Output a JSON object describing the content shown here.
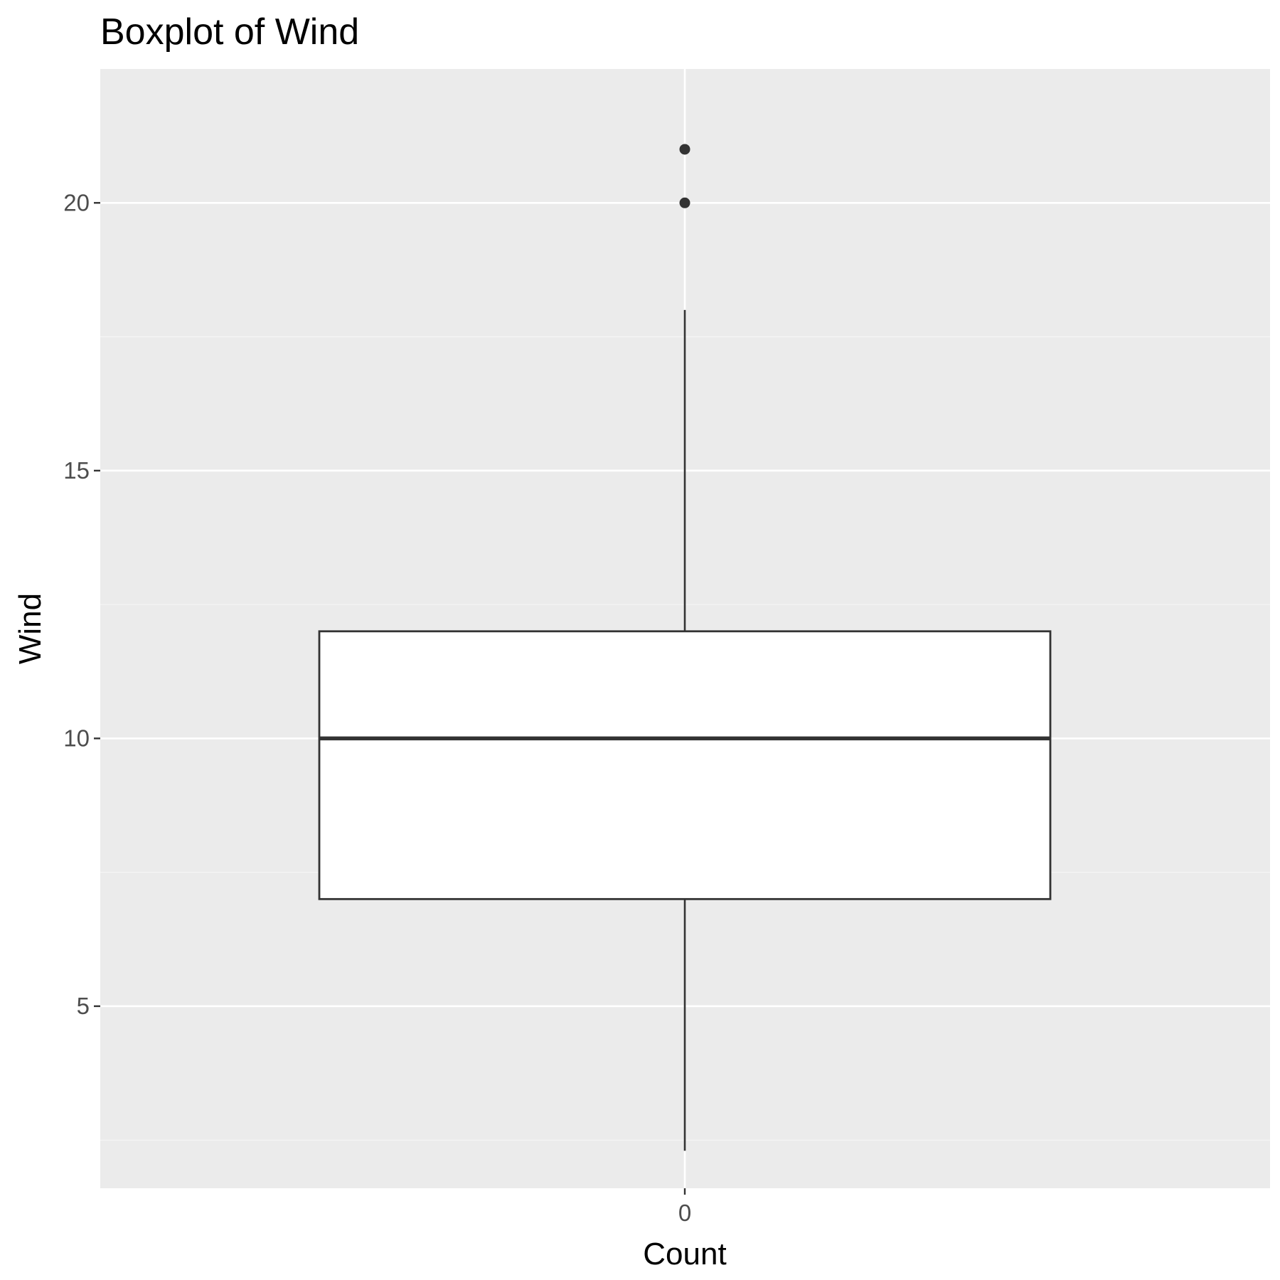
{
  "colors": {
    "panel_background": "#EBEBEB",
    "grid_major": "#FFFFFF",
    "grid_minor": "#F5F5F5",
    "box_fill": "#FFFFFF",
    "box_outline": "#333333",
    "outlier": "#333333",
    "tick_text": "#4D4D4D",
    "title_text": "#000000"
  },
  "chart_data": {
    "type": "boxplot",
    "title": "Boxplot of Wind",
    "xlabel": "Count",
    "ylabel": "Wind",
    "grid": true,
    "legend": "none",
    "categories": [
      "0"
    ],
    "x_tick_labels": [
      "0"
    ],
    "y_ticks": [
      5,
      10,
      15,
      20
    ],
    "y_tick_labels": [
      "5",
      "10",
      "15",
      "20"
    ],
    "ylim": [
      1.6,
      22.5
    ],
    "boxes": [
      {
        "category": "0",
        "whisker_low": 2.3,
        "q1": 7,
        "median": 10,
        "q3": 12,
        "whisker_high": 18,
        "outliers": [
          20,
          21
        ]
      }
    ]
  }
}
